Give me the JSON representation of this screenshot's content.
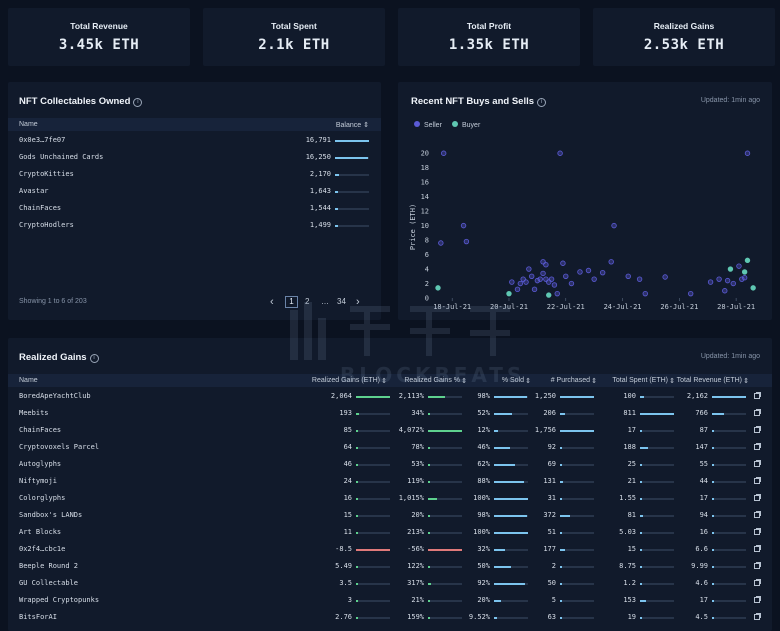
{
  "stats": [
    {
      "label": "Total Revenue",
      "value": "3.45k ETH"
    },
    {
      "label": "Total Spent",
      "value": "2.1k ETH"
    },
    {
      "label": "Total Profit",
      "value": "1.35k ETH"
    },
    {
      "label": "Realized Gains",
      "value": "2.53k ETH"
    }
  ],
  "nft_owned": {
    "title": "NFT Collectables Owned",
    "info": "i",
    "col_name": "Name",
    "col_balance": "Balance",
    "rows": [
      {
        "name": "0x0e3…7fe07",
        "balance": "16,791",
        "level": 1.0
      },
      {
        "name": "Gods Unchained Cards",
        "balance": "16,250",
        "level": 0.97
      },
      {
        "name": "CryptoKitties",
        "balance": "2,170",
        "level": 0.13
      },
      {
        "name": "Avastar",
        "balance": "1,643",
        "level": 0.1
      },
      {
        "name": "ChainFaces",
        "balance": "1,544",
        "level": 0.09
      },
      {
        "name": "CryptoHodlers",
        "balance": "1,499",
        "level": 0.09
      }
    ],
    "showing": "Showing 1 to 6 of 203",
    "pages": {
      "prev": "‹",
      "current": "1",
      "next_page": "2",
      "dots": "…",
      "last": "34",
      "next": "›"
    }
  },
  "buys_sells": {
    "title": "Recent NFT Buys and Sells",
    "info": "i",
    "updated": "Updated: 1min ago",
    "legend_seller": "Seller",
    "legend_buyer": "Buyer",
    "seller_color": "#5b5bd6",
    "buyer_color": "#5fc7b2"
  },
  "chart_data": {
    "type": "scatter",
    "ylabel": "Price (ETH)",
    "ylim": [
      0,
      21
    ],
    "yticks": [
      "0",
      "2",
      "4",
      "6",
      "8",
      "10",
      "12",
      "14",
      "16",
      "18",
      "20"
    ],
    "xticks": [
      "18-Jul-21",
      "20-Jul-21",
      "22-Jul-21",
      "24-Jul-21",
      "26-Jul-21",
      "28-Jul-21"
    ],
    "xlim": [
      17.5,
      28.7
    ],
    "series": [
      {
        "name": "Seller",
        "points": [
          [
            17.7,
            20
          ],
          [
            17.6,
            7.6
          ],
          [
            18.4,
            10
          ],
          [
            18.5,
            7.8
          ],
          [
            20.1,
            2.2
          ],
          [
            20.3,
            1.2
          ],
          [
            20.4,
            2.0
          ],
          [
            20.5,
            2.6
          ],
          [
            20.6,
            2.2
          ],
          [
            20.7,
            4.0
          ],
          [
            20.8,
            3.0
          ],
          [
            20.9,
            1.2
          ],
          [
            21.0,
            2.4
          ],
          [
            21.1,
            2.6
          ],
          [
            21.2,
            3.4
          ],
          [
            21.2,
            5.0
          ],
          [
            21.3,
            4.6
          ],
          [
            21.3,
            2.6
          ],
          [
            21.4,
            2.2
          ],
          [
            21.5,
            2.6
          ],
          [
            21.6,
            1.8
          ],
          [
            21.7,
            0.6
          ],
          [
            21.8,
            20
          ],
          [
            21.9,
            4.8
          ],
          [
            22.0,
            3.0
          ],
          [
            22.2,
            2.0
          ],
          [
            22.5,
            3.6
          ],
          [
            22.8,
            3.8
          ],
          [
            23.0,
            2.6
          ],
          [
            23.3,
            3.5
          ],
          [
            23.6,
            5.0
          ],
          [
            23.7,
            10
          ],
          [
            24.2,
            3.0
          ],
          [
            24.6,
            2.6
          ],
          [
            24.8,
            0.6
          ],
          [
            25.5,
            2.9
          ],
          [
            26.4,
            0.6
          ],
          [
            27.1,
            2.2
          ],
          [
            27.4,
            2.6
          ],
          [
            27.6,
            1.0
          ],
          [
            27.7,
            2.4
          ],
          [
            27.9,
            2.0
          ],
          [
            28.1,
            4.4
          ],
          [
            28.2,
            2.6
          ],
          [
            28.3,
            2.8
          ],
          [
            28.4,
            20
          ]
        ]
      },
      {
        "name": "Buyer",
        "points": [
          [
            17.5,
            1.4
          ],
          [
            20.0,
            0.6
          ],
          [
            21.4,
            0.4
          ],
          [
            27.8,
            4.0
          ],
          [
            28.3,
            3.6
          ],
          [
            28.4,
            5.2
          ],
          [
            28.6,
            1.4
          ]
        ]
      }
    ]
  },
  "realized": {
    "title": "Realized Gains",
    "info": "i",
    "updated": "Updated: 1min ago",
    "columns": [
      "Name",
      "Realized Gains (ETH)",
      "Realized Gains %",
      "% Sold",
      "# Purchased",
      "Total Spent (ETH)",
      "Total Revenue (ETH)"
    ],
    "rows": [
      {
        "name": "BoredApeYachtClub",
        "rg": "2,064",
        "rgp": "2,113%",
        "sold": "98%",
        "purchased": "1,250",
        "spent": "100",
        "revenue": "2,162",
        "l": [
          1.0,
          0.5,
          0.98,
          1.0,
          0.12,
          1.0
        ],
        "neg": false
      },
      {
        "name": "Meebits",
        "rg": "193",
        "rgp": "34%",
        "sold": "52%",
        "purchased": "206",
        "spent": "811",
        "revenue": "766",
        "l": [
          0.09,
          0.01,
          0.52,
          0.16,
          1.0,
          0.36
        ],
        "neg": false
      },
      {
        "name": "ChainFaces",
        "rg": "85",
        "rgp": "4,072%",
        "sold": "12%",
        "purchased": "1,756",
        "spent": "17",
        "revenue": "87",
        "l": [
          0.04,
          1.0,
          0.12,
          1.0,
          0.02,
          0.04
        ],
        "neg": false
      },
      {
        "name": "Cryptovoxels Parcel",
        "rg": "64",
        "rgp": "78%",
        "sold": "46%",
        "purchased": "92",
        "spent": "188",
        "revenue": "147",
        "l": [
          0.03,
          0.02,
          0.46,
          0.07,
          0.23,
          0.07
        ],
        "neg": false
      },
      {
        "name": "Autoglyphs",
        "rg": "46",
        "rgp": "53%",
        "sold": "62%",
        "purchased": "69",
        "spent": "25",
        "revenue": "55",
        "l": [
          0.02,
          0.01,
          0.62,
          0.05,
          0.03,
          0.03
        ],
        "neg": false
      },
      {
        "name": "Niftymoji",
        "rg": "24",
        "rgp": "119%",
        "sold": "88%",
        "purchased": "131",
        "spent": "21",
        "revenue": "44",
        "l": [
          0.01,
          0.03,
          0.88,
          0.1,
          0.03,
          0.02
        ],
        "neg": false
      },
      {
        "name": "Colorglyphs",
        "rg": "16",
        "rgp": "1,015%",
        "sold": "100%",
        "purchased": "31",
        "spent": "1.55",
        "revenue": "17",
        "l": [
          0.01,
          0.25,
          1.0,
          0.02,
          0.0,
          0.01
        ],
        "neg": false
      },
      {
        "name": "Sandbox's LANDs",
        "rg": "15",
        "rgp": "20%",
        "sold": "98%",
        "purchased": "372",
        "spent": "81",
        "revenue": "94",
        "l": [
          0.01,
          0.0,
          0.98,
          0.3,
          0.1,
          0.04
        ],
        "neg": false
      },
      {
        "name": "Art Blocks",
        "rg": "11",
        "rgp": "213%",
        "sold": "100%",
        "purchased": "51",
        "spent": "5.03",
        "revenue": "16",
        "l": [
          0.01,
          0.05,
          1.0,
          0.04,
          0.01,
          0.01
        ],
        "neg": false
      },
      {
        "name": "0x2f4…cbc1e",
        "rg": "-8.5",
        "rgp": "-56%",
        "sold": "32%",
        "purchased": "177",
        "spent": "15",
        "revenue": "6.6",
        "l": [
          1.0,
          1.0,
          0.32,
          0.14,
          0.02,
          0.0
        ],
        "neg": true
      },
      {
        "name": "Beeple Round 2",
        "rg": "5.49",
        "rgp": "122%",
        "sold": "50%",
        "purchased": "2",
        "spent": "8.75",
        "revenue": "9.99",
        "l": [
          0.0,
          0.03,
          0.5,
          0.0,
          0.01,
          0.0
        ],
        "neg": false
      },
      {
        "name": "GU Collectable",
        "rg": "3.5",
        "rgp": "317%",
        "sold": "92%",
        "purchased": "50",
        "spent": "1.2",
        "revenue": "4.6",
        "l": [
          0.0,
          0.08,
          0.92,
          0.04,
          0.0,
          0.0
        ],
        "neg": false
      },
      {
        "name": "Wrapped Cryptopunks",
        "rg": "3",
        "rgp": "21%",
        "sold": "20%",
        "purchased": "5",
        "spent": "153",
        "revenue": "17",
        "l": [
          0.0,
          0.0,
          0.2,
          0.0,
          0.19,
          0.01
        ],
        "neg": false
      },
      {
        "name": "BitsForAI",
        "rg": "2.76",
        "rgp": "159%",
        "sold": "9.52%",
        "purchased": "63",
        "spent": "19",
        "revenue": "4.5",
        "l": [
          0.0,
          0.04,
          0.1,
          0.05,
          0.02,
          0.0
        ],
        "neg": false
      }
    ]
  },
  "watermark": "BLOCKBEATS"
}
